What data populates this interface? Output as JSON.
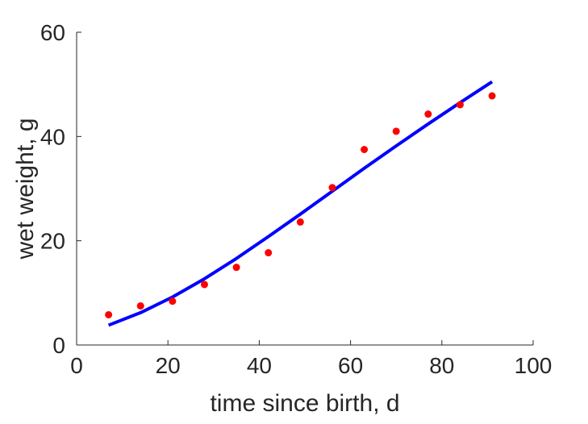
{
  "chart_data": {
    "type": "scatter",
    "title": "",
    "xlabel": "time since birth, d",
    "ylabel": "wet weight, g",
    "xlim": [
      0,
      100
    ],
    "ylim": [
      0,
      60
    ],
    "x_ticks": [
      "0",
      "20",
      "40",
      "60",
      "80",
      "100"
    ],
    "y_ticks": [
      "0",
      "20",
      "40",
      "60"
    ],
    "grid": false,
    "series": [
      {
        "kind": "points",
        "color": "#ff0000",
        "x": [
          7,
          14,
          21,
          28,
          35,
          42,
          49,
          56,
          63,
          70,
          77,
          84,
          91
        ],
        "y": [
          5.8,
          7.5,
          8.4,
          11.6,
          14.9,
          17.7,
          23.6,
          30.2,
          37.5,
          41.0,
          44.3,
          46.1,
          47.8
        ]
      },
      {
        "kind": "line",
        "color": "#0000ff",
        "x": [
          7,
          14,
          21,
          28,
          35,
          42,
          49,
          56,
          63,
          70,
          77,
          84,
          91
        ],
        "y": [
          3.8,
          6.2,
          9.2,
          12.7,
          16.6,
          20.8,
          25.1,
          29.5,
          33.9,
          38.2,
          42.4,
          46.5,
          50.5
        ]
      }
    ]
  }
}
